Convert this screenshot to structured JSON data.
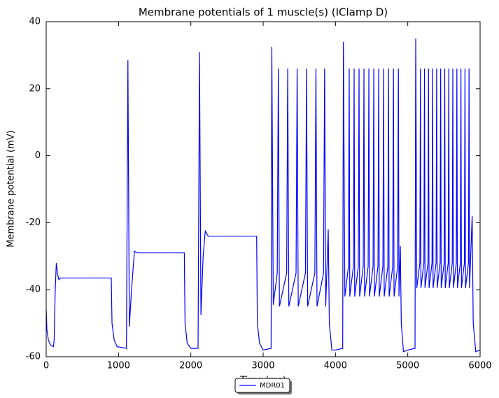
{
  "chart_data": {
    "type": "line",
    "title": "Membrane potentials of 1 muscle(s) (IClamp D)",
    "xlabel": "Time (ms)",
    "ylabel": "Membrane potential (mV)",
    "xlim": [
      0,
      6000
    ],
    "xticks": [
      0,
      1000,
      2000,
      3000,
      4000,
      5000,
      6000
    ],
    "ylim": [
      -60,
      40
    ],
    "yticks": [
      -60,
      -40,
      -20,
      0,
      20,
      40
    ],
    "legend": "lower center",
    "series": [
      {
        "name": "MDR01",
        "color": "#0000ff",
        "x": [
          0,
          10,
          30,
          60,
          100,
          110,
          125,
          140,
          155,
          175,
          200,
          900,
          910,
          940,
          980,
          1110,
          1130,
          1150,
          1180,
          1220,
          1260,
          1910,
          1920,
          1950,
          2000,
          2100,
          2120,
          2140,
          2170,
          2200,
          2240,
          2910,
          2920,
          2950,
          3000,
          3110,
          3120,
          3140,
          3195,
          3210,
          3225,
          3325,
          3340,
          3355,
          3455,
          3470,
          3485,
          3585,
          3600,
          3615,
          3715,
          3730,
          3745,
          3835,
          3850,
          3865,
          3900,
          3915,
          3950,
          4000,
          4100,
          4110,
          4130,
          4180,
          4190,
          4198,
          4248,
          4258,
          4266,
          4316,
          4326,
          4334,
          4384,
          4394,
          4402,
          4452,
          4462,
          4470,
          4520,
          4530,
          4538,
          4588,
          4598,
          4606,
          4656,
          4666,
          4674,
          4724,
          4734,
          4742,
          4792,
          4802,
          4810,
          4860,
          4870,
          4878,
          4897,
          4910,
          4940,
          5000,
          5100,
          5110,
          5125,
          5167,
          5175,
          5182,
          5223,
          5231,
          5238,
          5279,
          5287,
          5294,
          5335,
          5343,
          5350,
          5391,
          5399,
          5406,
          5447,
          5455,
          5462,
          5503,
          5511,
          5518,
          5559,
          5567,
          5574,
          5615,
          5623,
          5630,
          5671,
          5679,
          5686,
          5727,
          5735,
          5742,
          5783,
          5791,
          5798,
          5839,
          5847,
          5854,
          5890,
          5905,
          5940,
          6000
        ],
        "values": [
          -46,
          -52,
          -55,
          -56.5,
          -57,
          -55,
          -40,
          -32,
          -35,
          -37,
          -36.5,
          -36.5,
          -50,
          -55,
          -57,
          -57.5,
          28.5,
          -51,
          -40,
          -28.5,
          -29,
          -29,
          -50,
          -56,
          -57.5,
          -57.5,
          31,
          -47.5,
          -30,
          -22.5,
          -24,
          -24,
          -50,
          -56,
          -58,
          -57.5,
          32.5,
          -44.5,
          -35,
          26,
          -45,
          -35,
          26,
          -45,
          -35,
          26,
          -45,
          -35,
          26,
          -45,
          -35,
          26,
          -45,
          -35,
          26,
          -45,
          -22,
          -50,
          -58,
          -58,
          -57.5,
          34,
          -42,
          -33,
          26,
          -42,
          -33,
          26,
          -42,
          -33,
          26,
          -42,
          -33,
          26,
          -42,
          -33,
          26,
          -42,
          -33,
          26,
          -42,
          -33,
          26,
          -42,
          -33,
          26,
          -42,
          -33,
          26,
          -42,
          -33,
          26,
          -42,
          -33,
          26,
          -42,
          -27,
          -50,
          -58.5,
          -58,
          -57.5,
          35,
          -39.5,
          -32,
          26,
          -39.5,
          -32,
          26,
          -39.5,
          -32,
          26,
          -39.5,
          -32,
          26,
          -39.5,
          -32,
          26,
          -39.5,
          -32,
          26,
          -39.5,
          -32,
          26,
          -39.5,
          -32,
          26,
          -39.5,
          -32,
          26,
          -39.5,
          -32,
          26,
          -39.5,
          -32,
          26,
          -39.5,
          -32,
          26,
          -39.5,
          -32,
          26,
          -39.5,
          -18,
          -50,
          -58.5,
          -58
        ]
      }
    ]
  }
}
